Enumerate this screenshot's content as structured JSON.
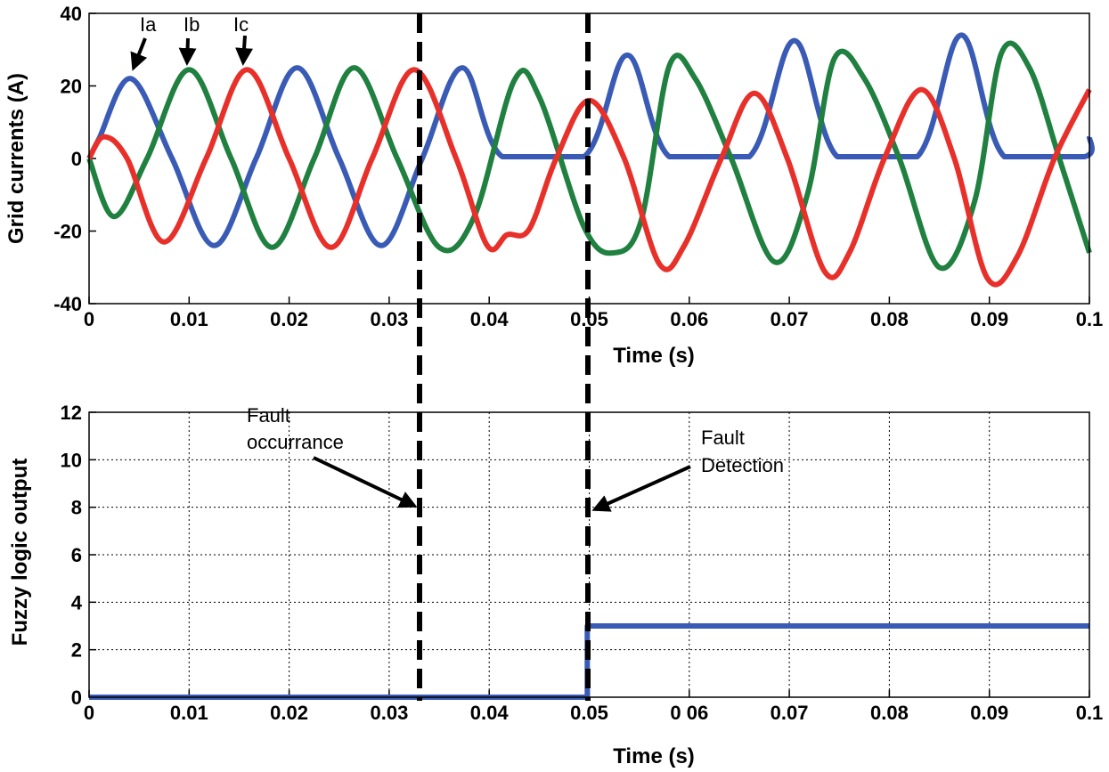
{
  "chart_data": [
    {
      "type": "line",
      "ylabel": "Grid currents (A)",
      "xlabel": "Time (s)",
      "xlim": [
        0,
        0.1
      ],
      "ylim": [
        -40,
        40
      ],
      "x_ticks": [
        "0",
        "0.01",
        "0.02",
        "0.03",
        "0.04",
        "0.05",
        "0.06",
        "0.07",
        "0.08",
        "0.09",
        "0.1"
      ],
      "y_ticks": [
        "-40",
        "-20",
        "0",
        "20",
        "40"
      ],
      "grid": false,
      "series": [
        {
          "name": "Ia",
          "color": "#3a5bb5",
          "points": [
            [
              0,
              0
            ],
            [
              0.001,
              5.5
            ],
            [
              0.0042,
              22
            ],
            [
              0.0083,
              0
            ],
            [
              0.0125,
              -24
            ],
            [
              0.0167,
              0
            ],
            [
              0.0208,
              25
            ],
            [
              0.025,
              0
            ],
            [
              0.0292,
              -24
            ],
            [
              0.0333,
              0
            ],
            [
              0.0373,
              25
            ],
            [
              0.0413,
              0.5
            ],
            [
              0.0495,
              0.5
            ],
            [
              0.0538,
              28.5
            ],
            [
              0.058,
              0.5
            ],
            [
              0.066,
              0.5
            ],
            [
              0.0705,
              32.5
            ],
            [
              0.0748,
              0.5
            ],
            [
              0.0828,
              0.5
            ],
            [
              0.0872,
              34
            ],
            [
              0.0915,
              0.5
            ],
            [
              0.0995,
              0.5
            ],
            [
              0.1,
              6
            ]
          ]
        },
        {
          "name": "Ib",
          "color": "#1f8040",
          "points": [
            [
              0,
              0
            ],
            [
              0.0025,
              -16
            ],
            [
              0.0058,
              0
            ],
            [
              0.01,
              24.5
            ],
            [
              0.0142,
              0
            ],
            [
              0.0183,
              -24.5
            ],
            [
              0.0225,
              0
            ],
            [
              0.0265,
              25
            ],
            [
              0.0308,
              0
            ],
            [
              0.035,
              -24.5
            ],
            [
              0.0385,
              -16
            ],
            [
              0.0425,
              21.5
            ],
            [
              0.045,
              17
            ],
            [
              0.0495,
              -19
            ],
            [
              0.0525,
              -26
            ],
            [
              0.0552,
              -17
            ],
            [
              0.058,
              25.5
            ],
            [
              0.0606,
              22
            ],
            [
              0.0642,
              0
            ],
            [
              0.0685,
              -28.5
            ],
            [
              0.0718,
              -10
            ],
            [
              0.0745,
              27.5
            ],
            [
              0.0775,
              22
            ],
            [
              0.081,
              0
            ],
            [
              0.085,
              -30
            ],
            [
              0.0885,
              -12
            ],
            [
              0.0912,
              29
            ],
            [
              0.094,
              25
            ],
            [
              0.097,
              0
            ],
            [
              0.1,
              -26
            ]
          ]
        },
        {
          "name": "Ic",
          "color": "#e8302a",
          "points": [
            [
              0,
              0
            ],
            [
              0.0015,
              6
            ],
            [
              0.0038,
              0
            ],
            [
              0.0075,
              -23
            ],
            [
              0.0117,
              0
            ],
            [
              0.0158,
              24.5
            ],
            [
              0.02,
              0
            ],
            [
              0.0242,
              -24.5
            ],
            [
              0.0283,
              0
            ],
            [
              0.0325,
              24.5
            ],
            [
              0.0367,
              0
            ],
            [
              0.0398,
              -24
            ],
            [
              0.0418,
              -21
            ],
            [
              0.044,
              -19.5
            ],
            [
              0.0467,
              0
            ],
            [
              0.05,
              16
            ],
            [
              0.0535,
              0
            ],
            [
              0.057,
              -29
            ],
            [
              0.0595,
              -24
            ],
            [
              0.0632,
              0
            ],
            [
              0.0665,
              18
            ],
            [
              0.0698,
              0
            ],
            [
              0.0735,
              -31
            ],
            [
              0.076,
              -26
            ],
            [
              0.0795,
              0
            ],
            [
              0.0832,
              19
            ],
            [
              0.0865,
              0
            ],
            [
              0.0898,
              -33
            ],
            [
              0.0928,
              -27
            ],
            [
              0.0965,
              0
            ],
            [
              0.1,
              19
            ]
          ]
        }
      ],
      "annotations": [
        "Ia",
        "Ib",
        "Ic"
      ]
    },
    {
      "type": "line",
      "ylabel": "Fuzzy logic output",
      "xlabel": "Time (s)",
      "xlim": [
        0,
        0.1
      ],
      "ylim": [
        0,
        12
      ],
      "x_ticks": [
        "0",
        "0.01",
        "0.02",
        "0.03",
        "0.04",
        "0.05",
        "0 06",
        "0.07",
        "0.08",
        "0.09",
        "0.1"
      ],
      "y_ticks": [
        "0",
        "2",
        "4",
        "6",
        "8",
        "10",
        "12"
      ],
      "grid": true,
      "series": [
        {
          "color": "#3a5bb5",
          "points": [
            [
              0,
              0
            ],
            [
              0.0498,
              0
            ],
            [
              0.0498,
              3
            ],
            [
              0.1,
              3
            ]
          ]
        }
      ],
      "annotations": [
        "Fault occurrance",
        "Fault Detection"
      ]
    }
  ],
  "markers": {
    "fault_occurrence_time": 0.033,
    "fault_detection_time": 0.0498
  },
  "labels": {
    "ia": "Ia",
    "ib": "Ib",
    "ic": "Ic",
    "fault_occ_1": "Fault",
    "fault_occ_2": "occurrance",
    "fault_det_1": "Fault",
    "fault_det_2": "Detection"
  }
}
